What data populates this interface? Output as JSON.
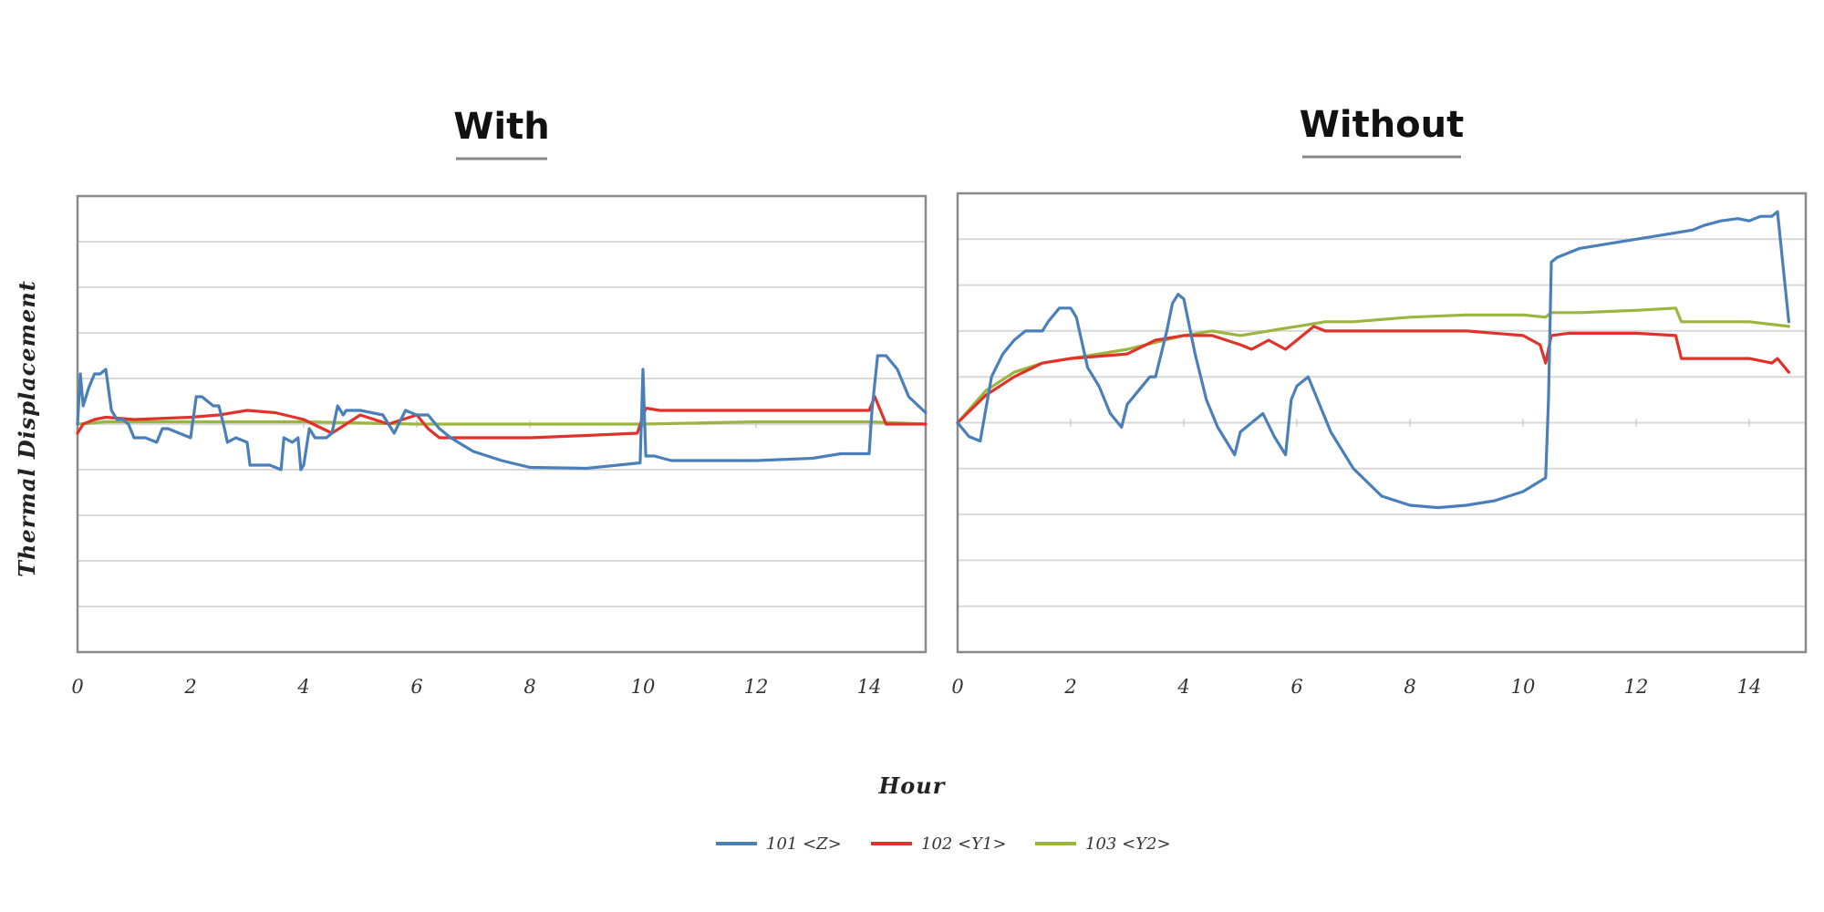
{
  "chart_data": {
    "type": "line",
    "xlabel": "Hour",
    "ylabel": "Thermal Displacement",
    "xlim": [
      0,
      15
    ],
    "ylim": [
      -5,
      5
    ],
    "y_tick_labels_shown": false,
    "grid": "horizontal",
    "legend_placement": "bottom-center",
    "x_ticks": [
      0,
      2,
      4,
      6,
      8,
      10,
      12,
      14
    ],
    "series_styles": [
      {
        "name": "101 <Z>",
        "color": "#4a7fba"
      },
      {
        "name": "102 <Y1>",
        "color": "#e0322b"
      },
      {
        "name": "103 <Y2>",
        "color": "#9bb53f"
      }
    ],
    "panels": [
      {
        "title": "With",
        "series": [
          {
            "name": "101 <Z>",
            "color": "#4a7fba",
            "x": [
              0,
              0.05,
              0.1,
              0.2,
              0.3,
              0.4,
              0.5,
              0.6,
              0.7,
              0.8,
              0.9,
              1.0,
              1.2,
              1.4,
              1.5,
              1.6,
              1.8,
              2.0,
              2.1,
              2.2,
              2.4,
              2.5,
              2.6,
              2.65,
              2.8,
              3.0,
              3.05,
              3.2,
              3.4,
              3.6,
              3.65,
              3.8,
              3.9,
              3.95,
              4.0,
              4.1,
              4.2,
              4.4,
              4.5,
              4.6,
              4.7,
              4.75,
              5.0,
              5.4,
              5.6,
              5.8,
              6.0,
              6.2,
              6.4,
              6.6,
              7.0,
              7.5,
              8.0,
              9.0,
              9.95,
              10.0,
              10.05,
              10.2,
              10.5,
              11.0,
              12.0,
              13.0,
              13.5,
              13.8,
              14.0,
              14.05,
              14.15,
              14.3,
              14.5,
              14.7,
              15.0
            ],
            "values": [
              0,
              1.1,
              0.4,
              0.8,
              1.1,
              1.1,
              1.2,
              0.3,
              0.1,
              0.1,
              0,
              -0.3,
              -0.3,
              -0.4,
              -0.1,
              -0.1,
              -0.2,
              -0.3,
              0.6,
              0.6,
              0.4,
              0.4,
              -0.1,
              -0.4,
              -0.3,
              -0.4,
              -0.9,
              -0.9,
              -0.9,
              -1.0,
              -0.3,
              -0.4,
              -0.3,
              -1.0,
              -0.9,
              -0.1,
              -0.3,
              -0.3,
              -0.2,
              0.4,
              0.2,
              0.3,
              0.3,
              0.2,
              -0.2,
              0.3,
              0.2,
              0.2,
              -0.1,
              -0.3,
              -0.6,
              -0.8,
              -0.95,
              -0.97,
              -0.85,
              1.2,
              -0.7,
              -0.7,
              -0.8,
              -0.8,
              -0.8,
              -0.75,
              -0.65,
              -0.65,
              -0.65,
              0.3,
              1.5,
              1.5,
              1.2,
              0.6,
              0.25
            ]
          },
          {
            "name": "102 <Y1>",
            "color": "#e0322b",
            "x": [
              0,
              0.1,
              0.3,
              0.5,
              1.0,
              2.0,
              2.5,
              3.0,
              3.5,
              4.0,
              4.5,
              5.0,
              5.5,
              6.0,
              6.2,
              6.4,
              6.6,
              7.0,
              8.0,
              9.0,
              9.9,
              10.05,
              10.3,
              11.0,
              12.0,
              13.0,
              14.0,
              14.1,
              14.3,
              15.0
            ],
            "values": [
              -0.2,
              0,
              0.1,
              0.15,
              0.1,
              0.15,
              0.2,
              0.3,
              0.25,
              0.1,
              -0.2,
              0.2,
              0,
              0.2,
              -0.1,
              -0.3,
              -0.3,
              -0.3,
              -0.3,
              -0.25,
              -0.2,
              0.35,
              0.3,
              0.3,
              0.3,
              0.3,
              0.3,
              0.6,
              0,
              0
            ]
          },
          {
            "name": "103 <Y2>",
            "color": "#9bb53f",
            "x": [
              0,
              0.5,
              2.0,
              4.0,
              6.0,
              8.0,
              10.0,
              12.0,
              14.0,
              15.0
            ],
            "values": [
              0,
              0.05,
              0.05,
              0.05,
              0,
              0,
              0,
              0.05,
              0.05,
              0
            ]
          }
        ]
      },
      {
        "title": "Without",
        "series": [
          {
            "name": "101 <Z>",
            "color": "#4a7fba",
            "x": [
              0,
              0.2,
              0.4,
              0.6,
              0.8,
              1.0,
              1.2,
              1.5,
              1.6,
              1.8,
              2.0,
              2.1,
              2.3,
              2.5,
              2.7,
              2.9,
              3.0,
              3.2,
              3.4,
              3.5,
              3.7,
              3.8,
              3.9,
              4.0,
              4.2,
              4.4,
              4.6,
              4.8,
              4.9,
              5.0,
              5.2,
              5.4,
              5.6,
              5.8,
              5.9,
              6.0,
              6.2,
              6.4,
              6.6,
              7.0,
              7.5,
              8.0,
              8.5,
              9.0,
              9.5,
              10.0,
              10.4,
              10.45,
              10.5,
              10.6,
              10.8,
              11.0,
              11.5,
              12.0,
              12.5,
              13.0,
              13.2,
              13.5,
              13.8,
              14.0,
              14.2,
              14.4,
              14.5,
              14.6,
              14.7
            ],
            "values": [
              0,
              -0.3,
              -0.4,
              1.0,
              1.5,
              1.8,
              2.0,
              2.0,
              2.2,
              2.5,
              2.5,
              2.3,
              1.2,
              0.8,
              0.2,
              -0.1,
              0.4,
              0.7,
              1.0,
              1.0,
              2.0,
              2.6,
              2.8,
              2.7,
              1.5,
              0.5,
              -0.1,
              -0.5,
              -0.7,
              -0.2,
              0,
              0.2,
              -0.3,
              -0.7,
              0.5,
              0.8,
              1.0,
              0.4,
              -0.2,
              -1.0,
              -1.6,
              -1.8,
              -1.85,
              -1.8,
              -1.7,
              -1.5,
              -1.2,
              0.5,
              3.5,
              3.6,
              3.7,
              3.8,
              3.9,
              4.0,
              4.1,
              4.2,
              4.3,
              4.4,
              4.45,
              4.4,
              4.5,
              4.5,
              4.6,
              3.4,
              2.2
            ]
          },
          {
            "name": "102 <Y1>",
            "color": "#e0322b",
            "x": [
              0,
              0.5,
              1.0,
              1.5,
              2.0,
              2.5,
              3.0,
              3.5,
              4.0,
              4.5,
              5.0,
              5.2,
              5.5,
              5.8,
              6.0,
              6.3,
              6.5,
              7.0,
              8.0,
              9.0,
              10.0,
              10.3,
              10.4,
              10.5,
              10.8,
              12.0,
              12.7,
              12.8,
              13.0,
              14.0,
              14.4,
              14.5,
              14.7
            ],
            "values": [
              0,
              0.6,
              1.0,
              1.3,
              1.4,
              1.45,
              1.5,
              1.8,
              1.9,
              1.9,
              1.7,
              1.6,
              1.8,
              1.6,
              1.8,
              2.1,
              2.0,
              2.0,
              2.0,
              2.0,
              1.9,
              1.7,
              1.3,
              1.9,
              1.95,
              1.95,
              1.9,
              1.4,
              1.4,
              1.4,
              1.3,
              1.4,
              1.1
            ]
          },
          {
            "name": "103 <Y2>",
            "color": "#9bb53f",
            "x": [
              0,
              0.5,
              1.0,
              1.5,
              2.0,
              2.5,
              3.0,
              3.5,
              4.0,
              4.5,
              5.0,
              5.5,
              6.0,
              6.5,
              7.0,
              8.0,
              9.0,
              10.0,
              10.4,
              10.5,
              11.0,
              12.0,
              12.7,
              12.8,
              13.0,
              14.0,
              14.7
            ],
            "values": [
              0,
              0.7,
              1.1,
              1.3,
              1.4,
              1.5,
              1.6,
              1.75,
              1.9,
              2.0,
              1.9,
              2.0,
              2.1,
              2.2,
              2.2,
              2.3,
              2.35,
              2.35,
              2.3,
              2.4,
              2.4,
              2.45,
              2.5,
              2.2,
              2.2,
              2.2,
              2.1
            ]
          }
        ]
      }
    ]
  }
}
